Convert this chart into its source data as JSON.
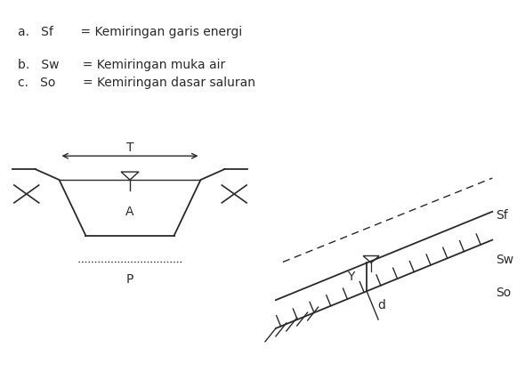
{
  "line_color": "#2a2a2a",
  "bg_color": "#ffffff",
  "text_a": "a.   Sf       = Kemiringan garis energi",
  "text_b": "b.   Sw      = Kemiringan muka air",
  "text_c": "c.   So       = Kemiringan dasar saluran",
  "fontsize": 10,
  "fig_w": 5.9,
  "fig_h": 4.18,
  "dpi": 100
}
